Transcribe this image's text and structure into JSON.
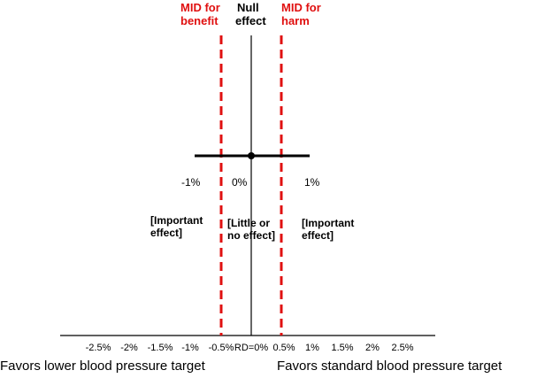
{
  "mid_benefit_label": [
    "MID for",
    "benefit"
  ],
  "null_effect_label": [
    "Null",
    "effect"
  ],
  "mid_harm_label": [
    "MID for",
    "harm"
  ],
  "ci_labels": {
    "lower": "-1%",
    "point": "0%",
    "upper": "1%"
  },
  "regions": {
    "left": [
      "[Important",
      "effect]"
    ],
    "middle": [
      "[Little or",
      "no effect]"
    ],
    "right": [
      "[Important",
      "effect]"
    ]
  },
  "axis_ticks": [
    "-2.5%",
    "-2%",
    "-1.5%",
    "-1%",
    "-0.5%",
    "RD=0%",
    "0.5%",
    "1%",
    "1.5%",
    "2%",
    "2.5%"
  ],
  "favors": {
    "left": "Favors lower blood pressure target",
    "right": "Favors standard blood pressure target"
  },
  "colors": {
    "mid_lines": "#e01010",
    "lines": "#000000"
  },
  "chart_data": {
    "type": "forest",
    "point_estimate": 0,
    "ci": [
      -1,
      1
    ],
    "mid_benefit": -0.5,
    "mid_harm": 0.5,
    "null_value": 0,
    "x_unit": "%",
    "x_ticks": [
      -2.5,
      -2,
      -1.5,
      -1,
      -0.5,
      0,
      0.5,
      1,
      1.5,
      2,
      2.5
    ]
  }
}
